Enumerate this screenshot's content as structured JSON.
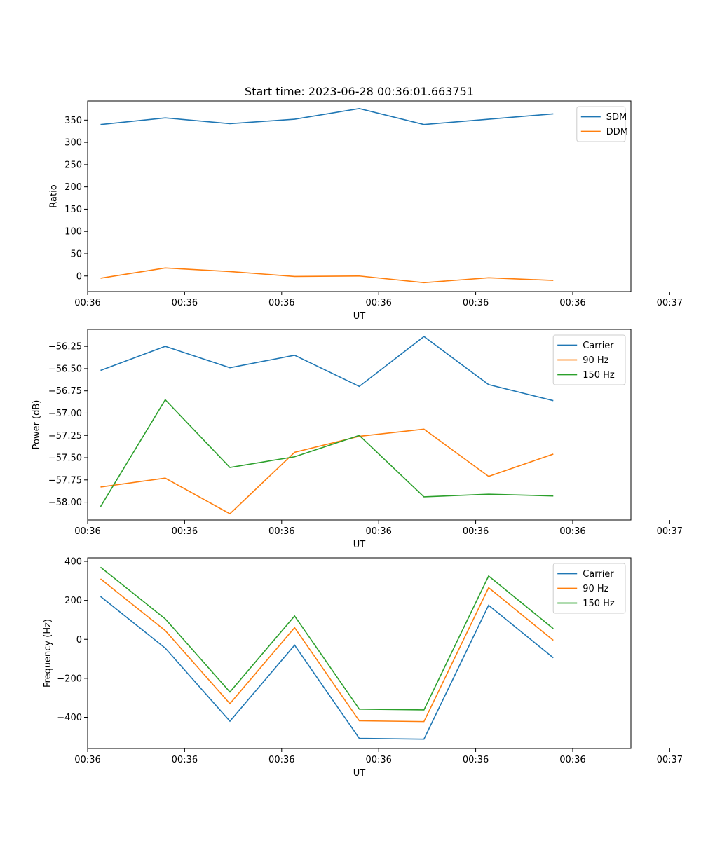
{
  "figure": {
    "title": "Start time: 2023-06-28 00:36:01.663751"
  },
  "chart_data": [
    {
      "type": "line",
      "title": "Start time: 2023-06-28 00:36:01.663751",
      "xlabel": "UT",
      "ylabel": "Ratio",
      "x": [
        1,
        2,
        3,
        4,
        5,
        6,
        7,
        8
      ],
      "xlim": [
        0.8,
        9.2
      ],
      "ylim": [
        -35,
        393
      ],
      "x_ticks": [
        0.8,
        2.3,
        3.8,
        5.3,
        6.8,
        8.3,
        9.8
      ],
      "x_tick_labels": [
        "00:36",
        "00:36",
        "00:36",
        "00:36",
        "00:36",
        "00:36",
        "00:37"
      ],
      "y_ticks": [
        0,
        50,
        100,
        150,
        200,
        250,
        300,
        350
      ],
      "y_tick_labels": [
        "0",
        "50",
        "100",
        "150",
        "200",
        "250",
        "300",
        "350"
      ],
      "legend_position": "top-right",
      "grid": false,
      "series": [
        {
          "name": "SDM",
          "color": "#1f77b4",
          "values": [
            340,
            355,
            342,
            352,
            376,
            340,
            352,
            364
          ]
        },
        {
          "name": "DDM",
          "color": "#ff7f0e",
          "values": [
            -5,
            18,
            10,
            -1,
            0,
            -15,
            -4,
            -10
          ]
        }
      ]
    },
    {
      "type": "line",
      "title": "",
      "xlabel": "UT",
      "ylabel": "Power (dB)",
      "x": [
        1,
        2,
        3,
        4,
        5,
        6,
        7,
        8
      ],
      "xlim": [
        0.8,
        9.2
      ],
      "ylim": [
        -58.2,
        -56.06
      ],
      "x_ticks": [
        0.8,
        2.3,
        3.8,
        5.3,
        6.8,
        8.3,
        9.8
      ],
      "x_tick_labels": [
        "00:36",
        "00:36",
        "00:36",
        "00:36",
        "00:36",
        "00:36",
        "00:37"
      ],
      "y_ticks": [
        -58.0,
        -57.75,
        -57.5,
        -57.25,
        -57.0,
        -56.75,
        -56.5,
        -56.25
      ],
      "y_tick_labels": [
        "−58.00",
        "−57.75",
        "−57.50",
        "−57.25",
        "−57.00",
        "−56.75",
        "−56.50",
        "−56.25"
      ],
      "legend_position": "top-right",
      "grid": false,
      "series": [
        {
          "name": "Carrier",
          "color": "#1f77b4",
          "values": [
            -56.52,
            -56.25,
            -56.49,
            -56.35,
            -56.7,
            -56.14,
            -56.68,
            -56.86
          ]
        },
        {
          "name": "90 Hz",
          "color": "#ff7f0e",
          "values": [
            -57.83,
            -57.73,
            -58.13,
            -57.44,
            -57.26,
            -57.18,
            -57.71,
            -57.46
          ]
        },
        {
          "name": "150 Hz",
          "color": "#2ca02c",
          "values": [
            -58.05,
            -56.85,
            -57.61,
            -57.49,
            -57.25,
            -57.94,
            -57.91,
            -57.93
          ]
        }
      ]
    },
    {
      "type": "line",
      "title": "",
      "xlabel": "UT",
      "ylabel": "Frequency (Hz)",
      "x": [
        1,
        2,
        3,
        4,
        5,
        6,
        7,
        8
      ],
      "xlim": [
        0.8,
        9.2
      ],
      "ylim": [
        -560,
        418
      ],
      "x_ticks": [
        0.8,
        2.3,
        3.8,
        5.3,
        6.8,
        8.3,
        9.8
      ],
      "x_tick_labels": [
        "00:36",
        "00:36",
        "00:36",
        "00:36",
        "00:36",
        "00:36",
        "00:37"
      ],
      "y_ticks": [
        -400,
        -200,
        0,
        200,
        400
      ],
      "y_tick_labels": [
        "−400",
        "−200",
        "0",
        "200",
        "400"
      ],
      "legend_position": "top-right",
      "grid": false,
      "series": [
        {
          "name": "Carrier",
          "color": "#1f77b4",
          "values": [
            220,
            -45,
            -420,
            -30,
            -508,
            -512,
            175,
            -95
          ]
        },
        {
          "name": "90 Hz",
          "color": "#ff7f0e",
          "values": [
            310,
            45,
            -330,
            60,
            -418,
            -422,
            265,
            -5
          ]
        },
        {
          "name": "150 Hz",
          "color": "#2ca02c",
          "values": [
            370,
            105,
            -270,
            120,
            -358,
            -362,
            325,
            55
          ]
        }
      ]
    }
  ]
}
